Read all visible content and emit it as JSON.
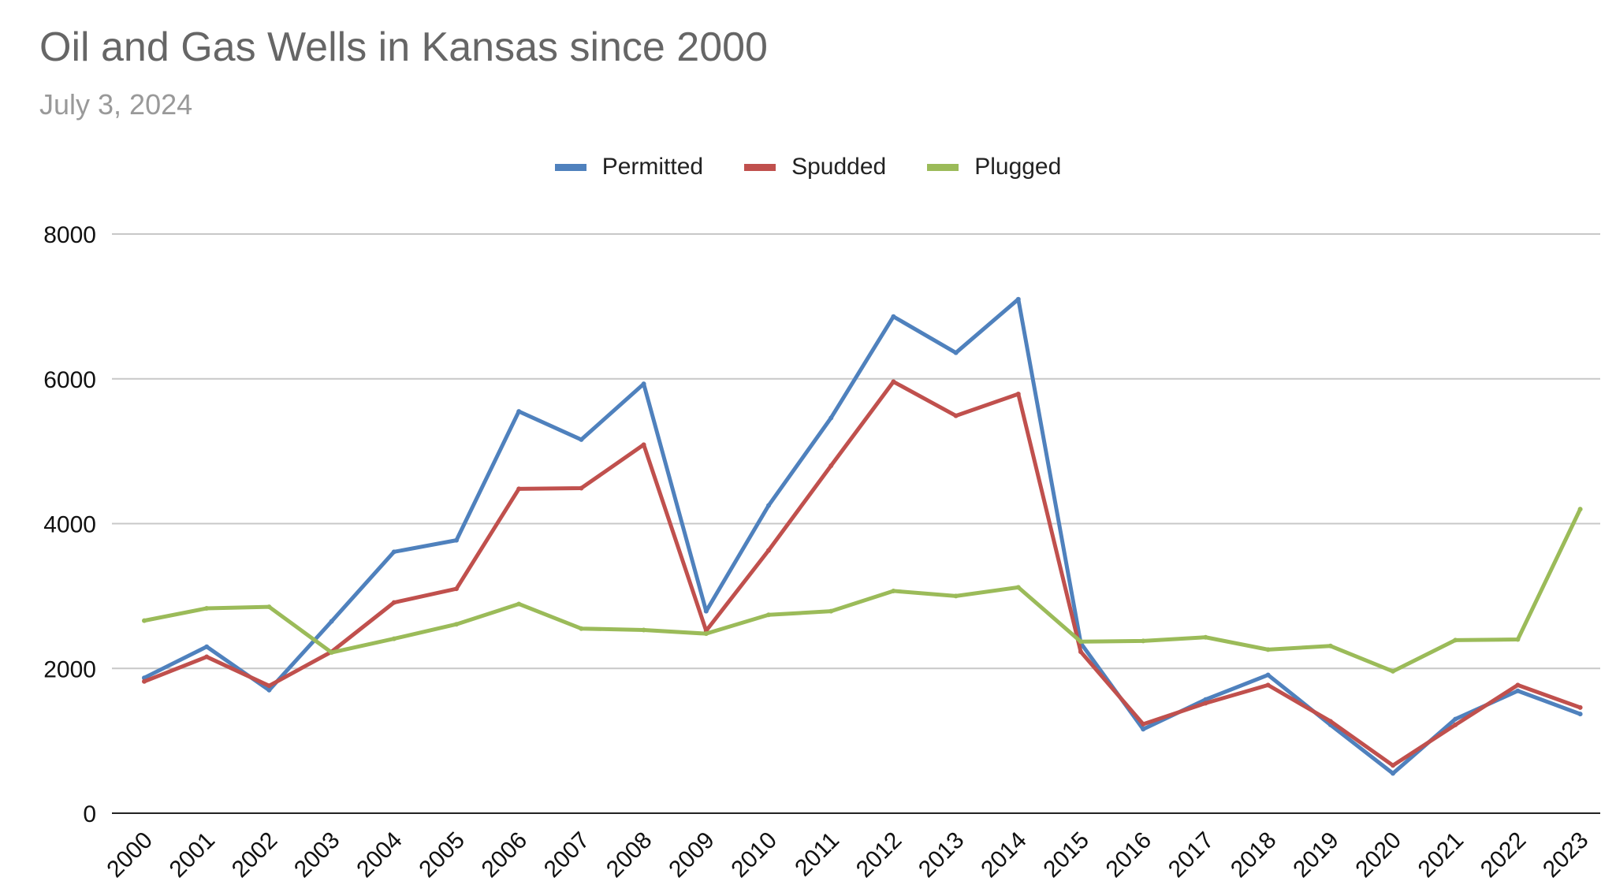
{
  "chart_data": {
    "type": "line",
    "title": "Oil and Gas Wells in Kansas since 2000",
    "subtitle": "July 3, 2024",
    "xlabel": "",
    "ylabel": "",
    "ylim": [
      0,
      8000
    ],
    "yticks": [
      0,
      2000,
      4000,
      6000,
      8000
    ],
    "grid": true,
    "legend_position": "top-center",
    "categories": [
      "2000",
      "2001",
      "2002",
      "2003",
      "2004",
      "2005",
      "2006",
      "2007",
      "2008",
      "2009",
      "2010",
      "2011",
      "2012",
      "2013",
      "2014",
      "2015",
      "2016",
      "2017",
      "2018",
      "2019",
      "2020",
      "2021",
      "2022",
      "2023"
    ],
    "series": [
      {
        "name": "Permitted",
        "color": "#4F81BD",
        "values": [
          1870,
          2300,
          1700,
          2650,
          3610,
          3770,
          5550,
          5160,
          5930,
          2790,
          4250,
          5460,
          6860,
          6360,
          7100,
          2350,
          1160,
          1570,
          1910,
          1220,
          550,
          1300,
          1690,
          1370
        ]
      },
      {
        "name": "Spudded",
        "color": "#C0504D",
        "values": [
          1820,
          2160,
          1760,
          2230,
          2910,
          3100,
          4480,
          4490,
          5090,
          2520,
          3630,
          4800,
          5960,
          5490,
          5790,
          2230,
          1230,
          1520,
          1770,
          1270,
          660,
          1220,
          1770,
          1460
        ]
      },
      {
        "name": "Plugged",
        "color": "#9BBB59",
        "values": [
          2660,
          2830,
          2850,
          2220,
          2410,
          2610,
          2890,
          2550,
          2530,
          2480,
          2740,
          2790,
          3070,
          3000,
          3120,
          2370,
          2380,
          2430,
          2260,
          2310,
          1960,
          2390,
          2400,
          4200
        ]
      }
    ]
  }
}
